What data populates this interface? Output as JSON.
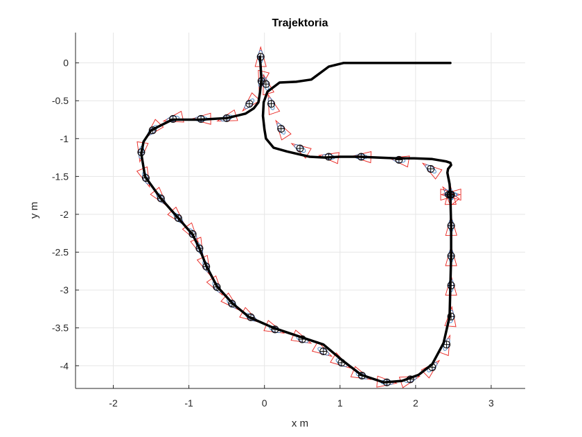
{
  "chart_data": {
    "type": "line",
    "title": "Trajektoria",
    "xlabel": "x m",
    "ylabel": "y m",
    "xlim": [
      -2.5,
      3.45
    ],
    "ylim": [
      -4.3,
      0.4
    ],
    "xticks": [
      -2,
      -1,
      0,
      1,
      2,
      3
    ],
    "xtick_labels": [
      "-2",
      "-1",
      "0",
      "1",
      "2",
      "3"
    ],
    "yticks": [
      0,
      -0.5,
      -1,
      -1.5,
      -2,
      -2.5,
      -3,
      -3.5,
      -4
    ],
    "ytick_labels": [
      "0",
      "-0.5",
      "-1",
      "-1.5",
      "-2",
      "-2.5",
      "-3",
      "-3.5",
      "-4"
    ],
    "grid": true,
    "colors": {
      "path": "#000000",
      "marker": "#000000",
      "robot": "#e8201b",
      "ellipse": "#3d7fc4",
      "grid": "#e6e6e6",
      "axis": "#262626"
    },
    "series": [
      {
        "style": "path",
        "x": [
          -0.06,
          -0.05,
          -0.04,
          -0.06,
          -0.08,
          -0.14,
          -0.25,
          -0.5,
          -0.85,
          -1.22,
          -1.5,
          -1.6,
          -1.63,
          -1.58,
          -1.38,
          -1.14,
          -0.95,
          -0.86,
          -0.77,
          -0.63,
          -0.42,
          -0.2,
          0.12,
          0.48,
          0.78,
          1.02,
          1.28,
          1.58,
          1.82,
          2.04,
          2.22,
          2.37,
          2.45,
          2.46,
          2.47,
          2.47,
          2.46,
          2.45,
          2.43,
          2.42,
          2.43,
          2.47,
          2.46,
          2.4,
          2.22,
          1.98,
          1.75,
          1.5,
          1.26,
          1.0,
          0.8,
          0.6,
          0.3,
          0.12,
          0.02,
          0.0,
          -0.02,
          -0.01,
          0.04,
          0.2,
          0.42,
          0.62,
          0.85,
          1.05,
          1.28,
          1.52,
          1.76,
          2.0,
          2.2,
          2.35,
          2.43,
          2.46,
          2.46,
          2.45
        ],
        "y": [
          0.08,
          -0.05,
          -0.22,
          -0.4,
          -0.52,
          -0.6,
          -0.67,
          -0.73,
          -0.75,
          -0.75,
          -0.89,
          -1.04,
          -1.2,
          -1.5,
          -1.78,
          -2.05,
          -2.27,
          -2.45,
          -2.68,
          -2.95,
          -3.18,
          -3.36,
          -3.5,
          -3.62,
          -3.72,
          -3.92,
          -4.12,
          -4.22,
          -4.2,
          -4.12,
          -3.98,
          -3.7,
          -3.35,
          -2.95,
          -2.55,
          -2.15,
          -1.75,
          -1.6,
          -1.5,
          -1.45,
          -1.4,
          -1.35,
          -1.32,
          -1.3,
          -1.27,
          -1.26,
          -1.26,
          -1.25,
          -1.24,
          -1.24,
          -1.25,
          -1.24,
          -1.17,
          -1.12,
          -1.0,
          -0.88,
          -0.7,
          -0.52,
          -0.38,
          -0.26,
          -0.25,
          -0.22,
          -0.05,
          0.0,
          0.0,
          0.0,
          0.0,
          0.0,
          0.0,
          0.0,
          0.0,
          0.0,
          0.0,
          0.0
        ]
      },
      {
        "style": "markers",
        "x": [
          -0.05,
          -0.04,
          -0.2,
          -0.5,
          -0.84,
          -1.21,
          -1.48,
          -1.63,
          -1.57,
          -1.37,
          -1.14,
          -0.95,
          -0.86,
          -0.77,
          -0.63,
          -0.43,
          -0.18,
          0.14,
          0.5,
          0.78,
          1.02,
          1.29,
          1.62,
          1.93,
          2.22,
          2.41,
          2.47,
          2.47,
          2.47,
          2.47,
          2.46,
          2.46,
          2.47,
          2.44,
          2.2,
          1.78,
          1.28,
          0.85,
          0.47,
          0.22,
          0.09,
          0.02
        ],
        "y": [
          0.08,
          -0.24,
          -0.54,
          -0.73,
          -0.74,
          -0.74,
          -0.89,
          -1.18,
          -1.52,
          -1.79,
          -2.05,
          -2.26,
          -2.45,
          -2.69,
          -2.96,
          -3.18,
          -3.36,
          -3.52,
          -3.65,
          -3.81,
          -3.96,
          -4.13,
          -4.22,
          -4.18,
          -4.02,
          -3.72,
          -3.35,
          -2.94,
          -2.55,
          -2.15,
          -1.74,
          -1.74,
          -1.74,
          -1.74,
          -1.4,
          -1.28,
          -1.24,
          -1.24,
          -1.13,
          -0.87,
          -0.54,
          -0.28
        ]
      }
    ]
  }
}
